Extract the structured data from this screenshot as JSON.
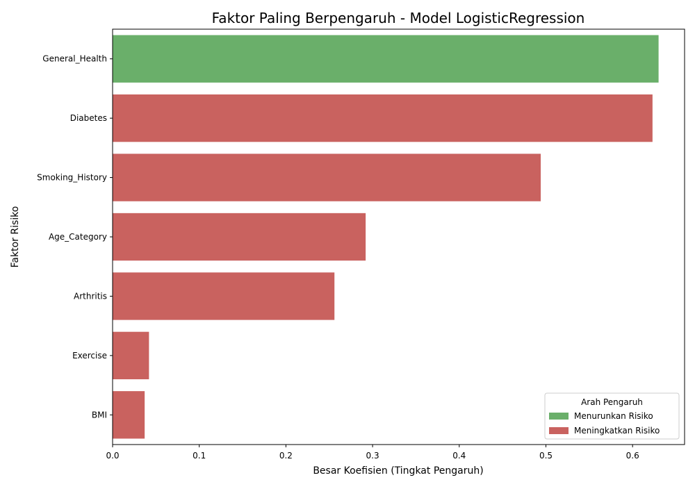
{
  "chart_data": {
    "type": "bar",
    "orientation": "horizontal",
    "title": "Faktor Paling Berpengaruh - Model LogisticRegression",
    "xlabel": "Besar Koefisien (Tingkat Pengaruh)",
    "ylabel": "Faktor Risiko",
    "xlim": [
      0,
      0.66
    ],
    "xticks": [
      0.0,
      0.1,
      0.2,
      0.3,
      0.4,
      0.5,
      0.6
    ],
    "xtick_labels": [
      "0.0",
      "0.1",
      "0.2",
      "0.3",
      "0.4",
      "0.5",
      "0.6"
    ],
    "grid": false,
    "legend": {
      "title": "Arah Pengaruh",
      "placement": "bottom-right",
      "entries": [
        {
          "label": "Menurunkan Risiko",
          "color": "#6aaf6a"
        },
        {
          "label": "Meningkatkan Risiko",
          "color": "#c9625f"
        }
      ]
    },
    "categories": [
      "General_Health",
      "Diabetes",
      "Smoking_History",
      "Age_Category",
      "Arthritis",
      "Exercise",
      "BMI"
    ],
    "values": [
      0.63,
      0.623,
      0.494,
      0.292,
      0.256,
      0.042,
      0.037
    ],
    "directions": [
      "Menurunkan Risiko",
      "Meningkatkan Risiko",
      "Meningkatkan Risiko",
      "Meningkatkan Risiko",
      "Meningkatkan Risiko",
      "Meningkatkan Risiko",
      "Meningkatkan Risiko"
    ],
    "colors": [
      "#6aaf6a",
      "#c9625f",
      "#c9625f",
      "#c9625f",
      "#c9625f",
      "#c9625f",
      "#c9625f"
    ]
  }
}
